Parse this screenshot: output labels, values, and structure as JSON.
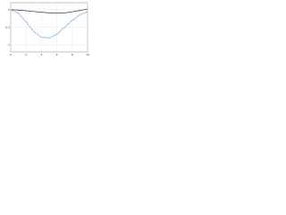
{
  "chart_data": {
    "type": "line",
    "x": [
      0,
      1,
      2,
      3,
      4,
      5,
      6,
      7,
      8,
      9,
      10
    ],
    "series": [
      {
        "color": "#2b3a4a",
        "dash": false,
        "values": [
          0,
          -0.01,
          -0.03,
          -0.05,
          -0.07,
          -0.09,
          -0.1,
          -0.09,
          -0.06,
          -0.02,
          0.02
        ]
      },
      {
        "color": "#4a90d9",
        "dash": true,
        "values": [
          0,
          -0.1,
          -0.35,
          -0.62,
          -0.78,
          -0.8,
          -0.7,
          -0.5,
          -0.3,
          -0.15,
          -0.05
        ]
      }
    ],
    "xlim": [
      0,
      10
    ],
    "xticks": [
      0,
      2,
      4,
      6,
      8,
      10
    ],
    "ylim": [
      -1.2,
      0.2
    ],
    "yticks": [
      -1,
      -0.5,
      0
    ],
    "grid": true
  }
}
